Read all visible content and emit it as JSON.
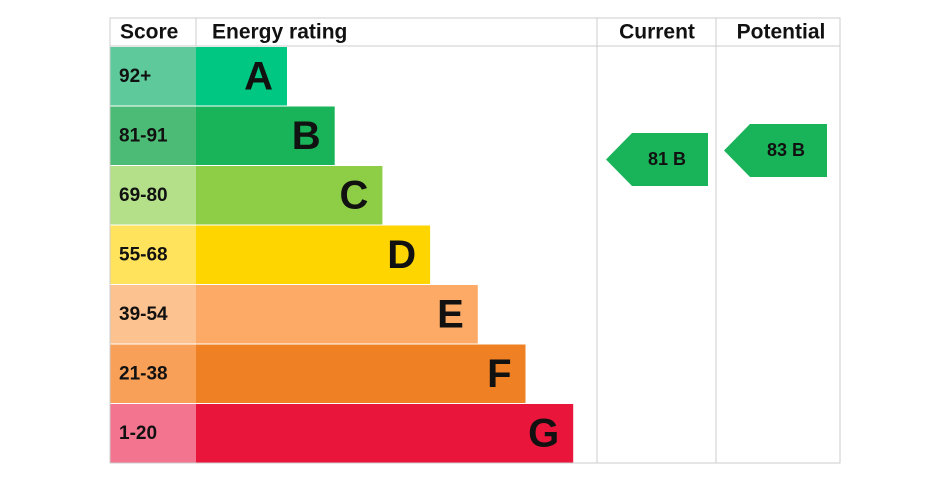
{
  "header": {
    "score": "Score",
    "rating": "Energy rating",
    "current": "Current",
    "potential": "Potential"
  },
  "bands": [
    {
      "score": "92+",
      "letter": "A",
      "color": "#00c781",
      "score_color": "#5ec99a"
    },
    {
      "score": "81-91",
      "letter": "B",
      "color": "#19b459",
      "score_color": "#4cbb75"
    },
    {
      "score": "69-80",
      "letter": "C",
      "color": "#8dce46",
      "score_color": "#b3e089"
    },
    {
      "score": "55-68",
      "letter": "D",
      "color": "#ffd500",
      "score_color": "#ffe35c"
    },
    {
      "score": "39-54",
      "letter": "E",
      "color": "#fcaa65",
      "score_color": "#fcc28f"
    },
    {
      "score": "21-38",
      "letter": "F",
      "color": "#ef8023",
      "score_color": "#f8a058"
    },
    {
      "score": "1-20",
      "letter": "G",
      "color": "#e9153b",
      "score_color": "#f2748f"
    }
  ],
  "current": {
    "label": "81 B",
    "color": "#19b459"
  },
  "potential": {
    "label": "83 B",
    "color": "#19b459"
  }
}
